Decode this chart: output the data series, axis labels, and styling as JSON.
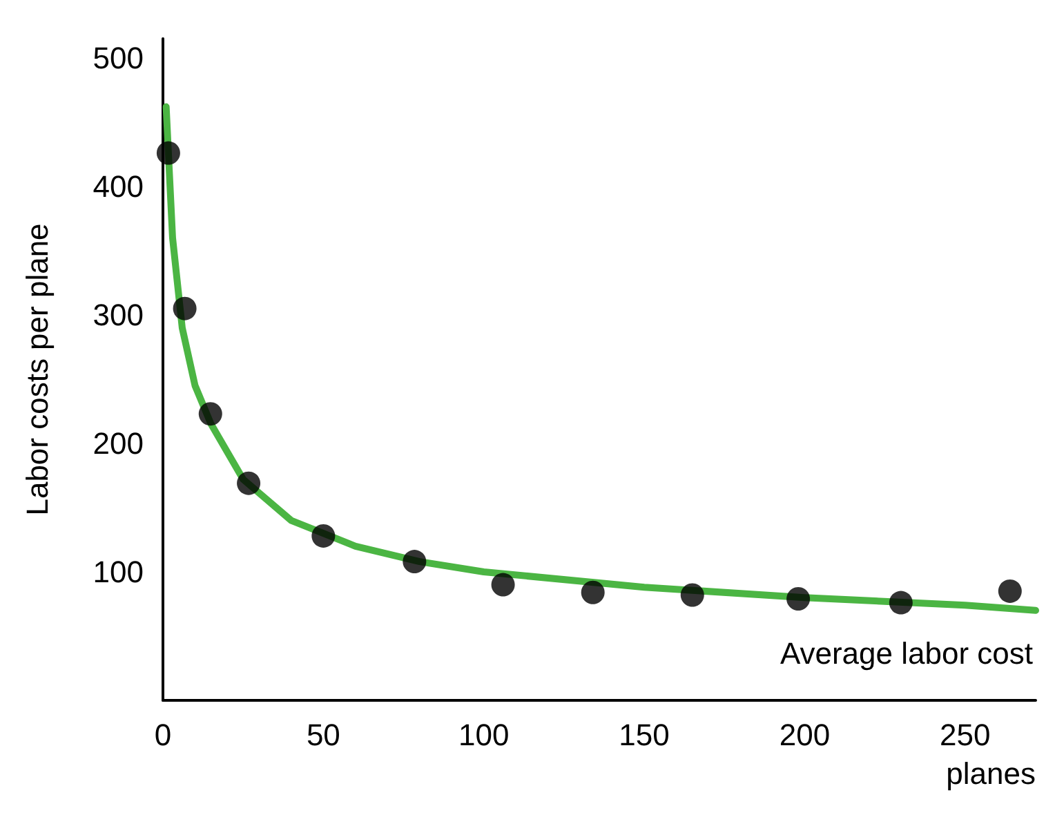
{
  "chart_data": {
    "type": "scatter",
    "xlabel": "planes",
    "ylabel": "Labor costs per plane",
    "xlim": [
      0,
      272
    ],
    "ylim": [
      0,
      515
    ],
    "xticks": [
      0,
      50,
      100,
      150,
      200,
      250
    ],
    "yticks": [
      100,
      200,
      300,
      400,
      500
    ],
    "grid": false,
    "marker": "circle",
    "annotations": [
      "Average labor cost"
    ],
    "series": [
      {
        "color": "#000000",
        "x": [
          1.7,
          6.8,
          14.8,
          26.7,
          50,
          78.4,
          106,
          134,
          165,
          198,
          230,
          264
        ],
        "values": [
          426,
          305,
          223,
          169,
          128,
          108,
          90,
          84,
          82,
          79,
          76,
          85
        ]
      },
      {
        "type": "line",
        "color": "#4bb543",
        "marker": "none",
        "x": [
          1,
          3,
          6,
          10,
          15,
          25,
          40,
          60,
          80,
          100,
          150,
          200,
          250,
          272
        ],
        "values": [
          462,
          360,
          290,
          245,
          215,
          172,
          140,
          120,
          108,
          100,
          88,
          80,
          74,
          70
        ]
      }
    ]
  }
}
